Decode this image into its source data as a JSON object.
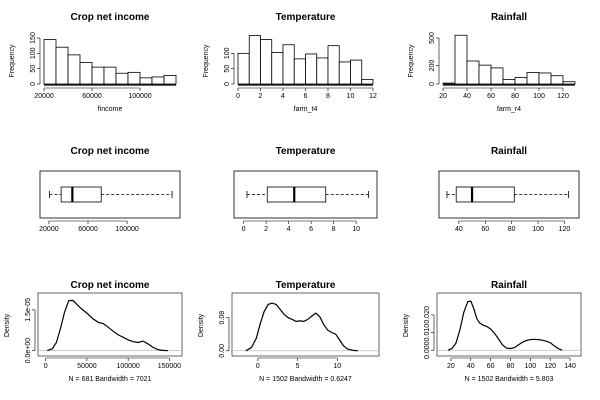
{
  "chart_data": [
    {
      "type": "bar",
      "kind": "histogram",
      "title": "Crop net income",
      "xlabel": "fincome",
      "ylabel": "Frequency",
      "xlim": [
        20000,
        130000
      ],
      "ylim": [
        0,
        150
      ],
      "xticks": [
        "20000",
        "60000",
        "100000"
      ],
      "xtick_values": [
        20000,
        60000,
        100000
      ],
      "yticks": [
        "0",
        "50",
        "100",
        "150"
      ],
      "ytick_values": [
        0,
        50,
        100,
        150
      ],
      "bin_edges": [
        20000,
        30000,
        40000,
        50000,
        60000,
        70000,
        80000,
        90000,
        100000,
        110000,
        120000,
        130000
      ],
      "values": [
        145,
        120,
        95,
        70,
        55,
        55,
        35,
        38,
        20,
        23,
        28
      ]
    },
    {
      "type": "bar",
      "kind": "histogram",
      "title": "Temperature",
      "xlabel": "farm_t4",
      "ylabel": "Frequency",
      "xlim": [
        0,
        12
      ],
      "ylim": [
        0,
        150
      ],
      "xticks": [
        "0",
        "2",
        "4",
        "6",
        "8",
        "10",
        "12"
      ],
      "xtick_values": [
        0,
        2,
        4,
        6,
        8,
        10,
        12
      ],
      "yticks": [
        "0",
        "50",
        "100"
      ],
      "ytick_values": [
        0,
        50,
        100
      ],
      "bin_edges": [
        0,
        1,
        2,
        3,
        4,
        5,
        6,
        7,
        8,
        9,
        10,
        11,
        12
      ],
      "values": [
        100,
        158,
        145,
        103,
        128,
        82,
        98,
        85,
        125,
        72,
        78,
        15
      ]
    },
    {
      "type": "bar",
      "kind": "histogram",
      "title": "Rainfall",
      "xlabel": "farm_r4",
      "ylabel": "Frequency",
      "xlim": [
        20,
        130
      ],
      "ylim": [
        0,
        500
      ],
      "xticks": [
        "20",
        "40",
        "60",
        "80",
        "100",
        "120"
      ],
      "xtick_values": [
        20,
        40,
        60,
        80,
        100,
        120
      ],
      "yticks": [
        "0",
        "200",
        "500"
      ],
      "ytick_values": [
        0,
        200,
        500
      ],
      "bin_edges": [
        20,
        30,
        40,
        50,
        60,
        70,
        80,
        90,
        100,
        110,
        120,
        130
      ],
      "values": [
        10,
        530,
        250,
        205,
        175,
        50,
        70,
        125,
        120,
        90,
        25
      ]
    },
    {
      "type": "boxplot",
      "orientation": "horizontal",
      "title": "Crop net income",
      "xlim": [
        15000,
        150000
      ],
      "xticks": [
        "20000",
        "60000",
        "100000"
      ],
      "xtick_values": [
        20000,
        60000,
        100000
      ],
      "stats": {
        "min": 20500,
        "q1": 32500,
        "median": 44000,
        "q3": 73500,
        "max": 146000
      }
    },
    {
      "type": "boxplot",
      "orientation": "horizontal",
      "title": "Temperature",
      "xlim": [
        -0.5,
        11.5
      ],
      "xticks": [
        "0",
        "2",
        "4",
        "6",
        "8",
        "10"
      ],
      "xtick_values": [
        0,
        2,
        4,
        6,
        8,
        10
      ],
      "stats": {
        "min": 0.3,
        "q1": 2.1,
        "median": 4.5,
        "q3": 7.3,
        "max": 11.1
      }
    },
    {
      "type": "boxplot",
      "orientation": "horizontal",
      "title": "Rainfall",
      "xlim": [
        28,
        128
      ],
      "xticks": [
        "40",
        "60",
        "80",
        "100",
        "120"
      ],
      "xtick_values": [
        40,
        60,
        80,
        100,
        120
      ],
      "stats": {
        "min": 31,
        "q1": 38,
        "median": 50,
        "q3": 82,
        "max": 123
      }
    },
    {
      "type": "line",
      "kind": "density",
      "title": "Crop net income",
      "ylabel": "Density",
      "xlabel": "N = 681   Bandwidth = 7021",
      "xlim": [
        -2000,
        158000
      ],
      "ylim": [
        -5e-07,
        1.9e-05
      ],
      "xticks": [
        "0",
        "50000",
        "100000",
        "150000"
      ],
      "xtick_values": [
        0,
        50000,
        100000,
        150000
      ],
      "yticks": [
        "0.0e+00",
        "1.5e-05"
      ],
      "ytick_values": [
        0,
        1.5e-05
      ],
      "x": [
        2000,
        8000,
        13000,
        18000,
        23000,
        28000,
        33000,
        38000,
        43000,
        50000,
        57000,
        64000,
        70000,
        76000,
        82000,
        88000,
        94000,
        100000,
        106000,
        112000,
        118000,
        124000,
        130000,
        136000,
        142000,
        148000
      ],
      "y": [
        0.0,
        7e-07,
        3e-06,
        8.2e-06,
        1.42e-05,
        1.84e-05,
        1.85e-05,
        1.7e-05,
        1.55e-05,
        1.38e-05,
        1.18e-05,
        1.04e-05,
        9.9e-06,
        8.6e-06,
        7.1e-06,
        5.8e-06,
        4.9e-06,
        4e-06,
        3.3e-06,
        3e-06,
        3.5e-06,
        2.5e-06,
        1.2e-06,
        4e-07,
        1e-07,
        0.0
      ]
    },
    {
      "type": "line",
      "kind": "density",
      "title": "Temperature",
      "ylabel": "Density",
      "xlabel": "N = 1502   Bandwidth = 0.6247",
      "xlim": [
        -2.5,
        14.5
      ],
      "ylim": [
        -0.003,
        0.125
      ],
      "xticks": [
        "0",
        "5",
        "10"
      ],
      "xtick_values": [
        0,
        5,
        10
      ],
      "yticks": [
        "0.00",
        "0.08"
      ],
      "ytick_values": [
        0,
        0.08
      ],
      "x": [
        -1.5,
        -0.8,
        -0.2,
        0.3,
        0.8,
        1.3,
        1.8,
        2.3,
        2.8,
        3.3,
        3.8,
        4.3,
        4.8,
        5.3,
        5.8,
        6.3,
        6.8,
        7.3,
        7.8,
        8.3,
        8.8,
        9.3,
        9.8,
        10.3,
        10.8,
        11.3,
        12.0,
        12.6
      ],
      "y": [
        0.0,
        0.008,
        0.03,
        0.065,
        0.095,
        0.112,
        0.115,
        0.112,
        0.1,
        0.088,
        0.08,
        0.076,
        0.071,
        0.072,
        0.071,
        0.076,
        0.084,
        0.091,
        0.082,
        0.063,
        0.05,
        0.044,
        0.04,
        0.026,
        0.012,
        0.004,
        0.001,
        0.0
      ]
    },
    {
      "type": "line",
      "kind": "density",
      "title": "Rainfall",
      "ylabel": "Density",
      "xlabel": "N = 1502   Bandwidth = 5.803",
      "xlim": [
        12,
        145
      ],
      "ylim": [
        -0.001,
        0.029
      ],
      "xticks": [
        "20",
        "40",
        "60",
        "80",
        "100",
        "120",
        "140"
      ],
      "xtick_values": [
        20,
        40,
        60,
        80,
        100,
        120,
        140
      ],
      "yticks": [
        "0.000",
        "0.010",
        "0.020"
      ],
      "ytick_values": [
        0,
        0.01,
        0.02
      ],
      "x": [
        17,
        21,
        25,
        29,
        33,
        37,
        40,
        43,
        46,
        49,
        52,
        56,
        60,
        64,
        68,
        72,
        76,
        80,
        84,
        88,
        92,
        96,
        100,
        104,
        108,
        112,
        116,
        120,
        124,
        128,
        132
      ],
      "y": [
        0.0,
        0.001,
        0.004,
        0.0115,
        0.0215,
        0.0275,
        0.0278,
        0.0235,
        0.018,
        0.0155,
        0.0143,
        0.0135,
        0.012,
        0.0095,
        0.0063,
        0.003,
        0.0012,
        0.001,
        0.0015,
        0.003,
        0.0045,
        0.0055,
        0.006,
        0.0062,
        0.006,
        0.0057,
        0.0051,
        0.0043,
        0.0025,
        0.001,
        0.0
      ]
    }
  ]
}
